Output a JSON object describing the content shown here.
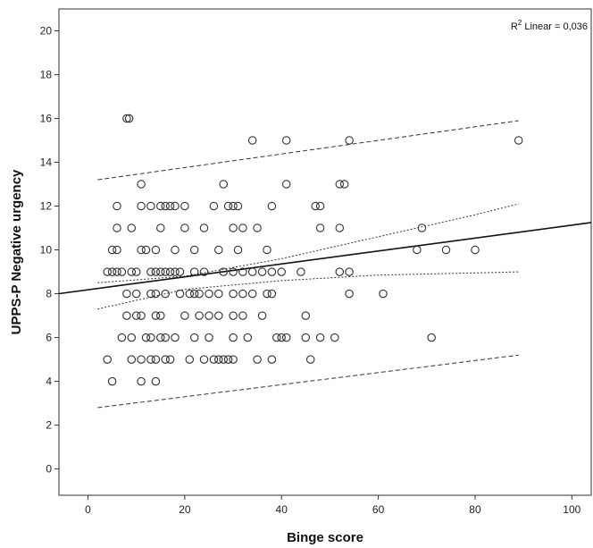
{
  "chart_data": {
    "type": "scatter",
    "xlabel": "Binge score",
    "ylabel": "UPPS-P Negative urgency",
    "xlim": [
      -6,
      104
    ],
    "ylim": [
      -1.2,
      21
    ],
    "xticks": [
      0,
      20,
      40,
      60,
      80,
      100
    ],
    "yticks": [
      0,
      2,
      4,
      6,
      8,
      10,
      12,
      14,
      16,
      18,
      20
    ],
    "xtick_labels": [
      "0",
      "20",
      "40",
      "60",
      "80",
      "100"
    ],
    "ytick_labels": [
      "0",
      "2",
      "4",
      "6",
      "8",
      "10",
      "12",
      "14",
      "16",
      "18",
      "20"
    ],
    "grid": false,
    "annotation": {
      "prefix": "R",
      "superscript": "2",
      "suffix": " Linear = 0,036"
    },
    "fit_line": {
      "intercept": 8.18,
      "slope": 0.0295
    },
    "confidence_band_mean": {
      "lower": [
        [
          2,
          7.3
        ],
        [
          20,
          8.2
        ],
        [
          40,
          8.6
        ],
        [
          60,
          8.85
        ],
        [
          80,
          8.95
        ],
        [
          89,
          9.0
        ]
      ],
      "upper": [
        [
          2,
          8.5
        ],
        [
          20,
          8.8
        ],
        [
          40,
          9.6
        ],
        [
          60,
          10.6
        ],
        [
          80,
          11.6
        ],
        [
          89,
          12.1
        ]
      ]
    },
    "prediction_band": {
      "lower": [
        [
          2,
          2.8
        ],
        [
          89,
          5.2
        ]
      ],
      "upper": [
        [
          2,
          13.2
        ],
        [
          89,
          15.9
        ]
      ]
    },
    "points": [
      [
        8,
        16
      ],
      [
        8.5,
        16
      ],
      [
        34,
        15
      ],
      [
        41,
        15
      ],
      [
        54,
        15
      ],
      [
        89,
        15
      ],
      [
        11,
        13
      ],
      [
        28,
        13
      ],
      [
        41,
        13
      ],
      [
        52,
        13
      ],
      [
        53,
        13
      ],
      [
        6,
        12
      ],
      [
        11,
        12
      ],
      [
        13,
        12
      ],
      [
        15,
        12
      ],
      [
        16,
        12
      ],
      [
        17,
        12
      ],
      [
        18,
        12
      ],
      [
        20,
        12
      ],
      [
        26,
        12
      ],
      [
        29,
        12
      ],
      [
        30,
        12
      ],
      [
        31,
        12
      ],
      [
        38,
        12
      ],
      [
        47,
        12
      ],
      [
        48,
        12
      ],
      [
        6,
        11
      ],
      [
        9,
        11
      ],
      [
        15,
        11
      ],
      [
        20,
        11
      ],
      [
        24,
        11
      ],
      [
        30,
        11
      ],
      [
        32,
        11
      ],
      [
        35,
        11
      ],
      [
        48,
        11
      ],
      [
        52,
        11
      ],
      [
        69,
        11
      ],
      [
        5,
        10
      ],
      [
        6,
        10
      ],
      [
        11,
        10
      ],
      [
        12,
        10
      ],
      [
        14,
        10
      ],
      [
        18,
        10
      ],
      [
        22,
        10
      ],
      [
        27,
        10
      ],
      [
        31,
        10
      ],
      [
        37,
        10
      ],
      [
        68,
        10
      ],
      [
        74,
        10
      ],
      [
        80,
        10
      ],
      [
        4,
        9
      ],
      [
        5,
        9
      ],
      [
        6,
        9
      ],
      [
        7,
        9
      ],
      [
        9,
        9
      ],
      [
        10,
        9
      ],
      [
        13,
        9
      ],
      [
        14,
        9
      ],
      [
        15,
        9
      ],
      [
        16,
        9
      ],
      [
        17,
        9
      ],
      [
        18,
        9
      ],
      [
        19,
        9
      ],
      [
        22,
        9
      ],
      [
        24,
        9
      ],
      [
        28,
        9
      ],
      [
        30,
        9
      ],
      [
        32,
        9
      ],
      [
        34,
        9
      ],
      [
        36,
        9
      ],
      [
        38,
        9
      ],
      [
        40,
        9
      ],
      [
        44,
        9
      ],
      [
        52,
        9
      ],
      [
        54,
        9
      ],
      [
        8,
        8
      ],
      [
        10,
        8
      ],
      [
        13,
        8
      ],
      [
        14,
        8
      ],
      [
        16,
        8
      ],
      [
        19,
        8
      ],
      [
        21,
        8
      ],
      [
        22,
        8
      ],
      [
        23,
        8
      ],
      [
        25,
        8
      ],
      [
        27,
        8
      ],
      [
        30,
        8
      ],
      [
        32,
        8
      ],
      [
        34,
        8
      ],
      [
        37,
        8
      ],
      [
        38,
        8
      ],
      [
        54,
        8
      ],
      [
        61,
        8
      ],
      [
        8,
        7
      ],
      [
        10,
        7
      ],
      [
        11,
        7
      ],
      [
        14,
        7
      ],
      [
        15,
        7
      ],
      [
        20,
        7
      ],
      [
        23,
        7
      ],
      [
        25,
        7
      ],
      [
        27,
        7
      ],
      [
        30,
        7
      ],
      [
        32,
        7
      ],
      [
        36,
        7
      ],
      [
        45,
        7
      ],
      [
        7,
        6
      ],
      [
        9,
        6
      ],
      [
        12,
        6
      ],
      [
        13,
        6
      ],
      [
        15,
        6
      ],
      [
        16,
        6
      ],
      [
        18,
        6
      ],
      [
        22,
        6
      ],
      [
        25,
        6
      ],
      [
        30,
        6
      ],
      [
        33,
        6
      ],
      [
        39,
        6
      ],
      [
        40,
        6
      ],
      [
        41,
        6
      ],
      [
        45,
        6
      ],
      [
        48,
        6
      ],
      [
        51,
        6
      ],
      [
        71,
        6
      ],
      [
        4,
        5
      ],
      [
        9,
        5
      ],
      [
        11,
        5
      ],
      [
        13,
        5
      ],
      [
        14,
        5
      ],
      [
        16,
        5
      ],
      [
        17,
        5
      ],
      [
        21,
        5
      ],
      [
        24,
        5
      ],
      [
        26,
        5
      ],
      [
        27,
        5
      ],
      [
        28,
        5
      ],
      [
        29,
        5
      ],
      [
        30,
        5
      ],
      [
        35,
        5
      ],
      [
        38,
        5
      ],
      [
        46,
        5
      ],
      [
        5,
        4
      ],
      [
        11,
        4
      ],
      [
        14,
        4
      ]
    ]
  }
}
